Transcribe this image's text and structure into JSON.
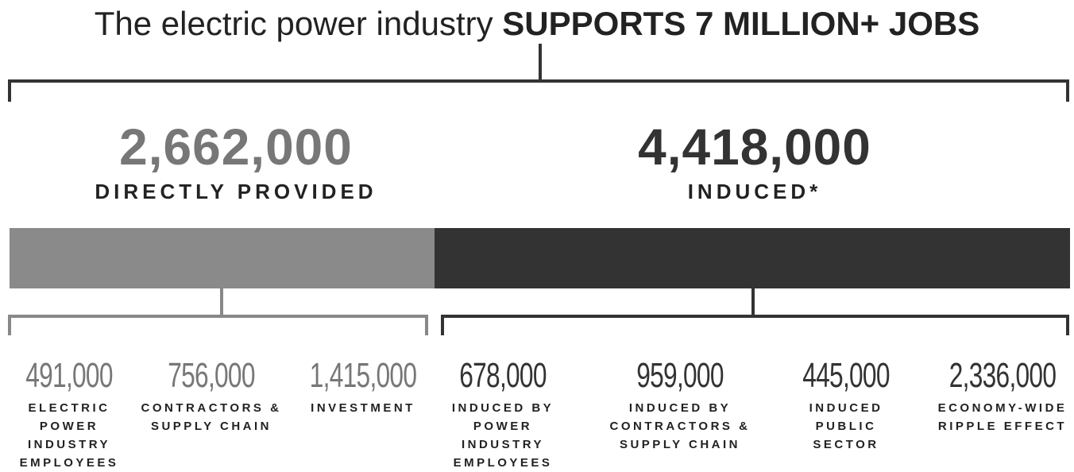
{
  "title": {
    "lead": "The electric power industry",
    "emphasis": "SUPPORTS 7 MILLION+ JOBS"
  },
  "groups": [
    {
      "value": "2,662,000",
      "label": "DIRECTLY PROVIDED",
      "items": [
        {
          "value": "491,000",
          "label": "ELECTRIC POWER INDUSTRY EMPLOYEES"
        },
        {
          "value": "756,000",
          "label": "CONTRACTORS & SUPPLY CHAIN"
        },
        {
          "value": "1,415,000",
          "label": "INVESTMENT"
        }
      ]
    },
    {
      "value": "4,418,000",
      "label": "INDUCED*",
      "items": [
        {
          "value": "678,000",
          "label": "INDUCED BY POWER INDUSTRY EMPLOYEES"
        },
        {
          "value": "959,000",
          "label": "INDUCED BY CONTRACTORS & SUPPLY CHAIN"
        },
        {
          "value": "445,000",
          "label": "INDUCED PUBLIC SECTOR"
        },
        {
          "value": "2,336,000",
          "label": "ECONOMY-WIDE RIPPLE EFFECT"
        }
      ]
    }
  ]
}
